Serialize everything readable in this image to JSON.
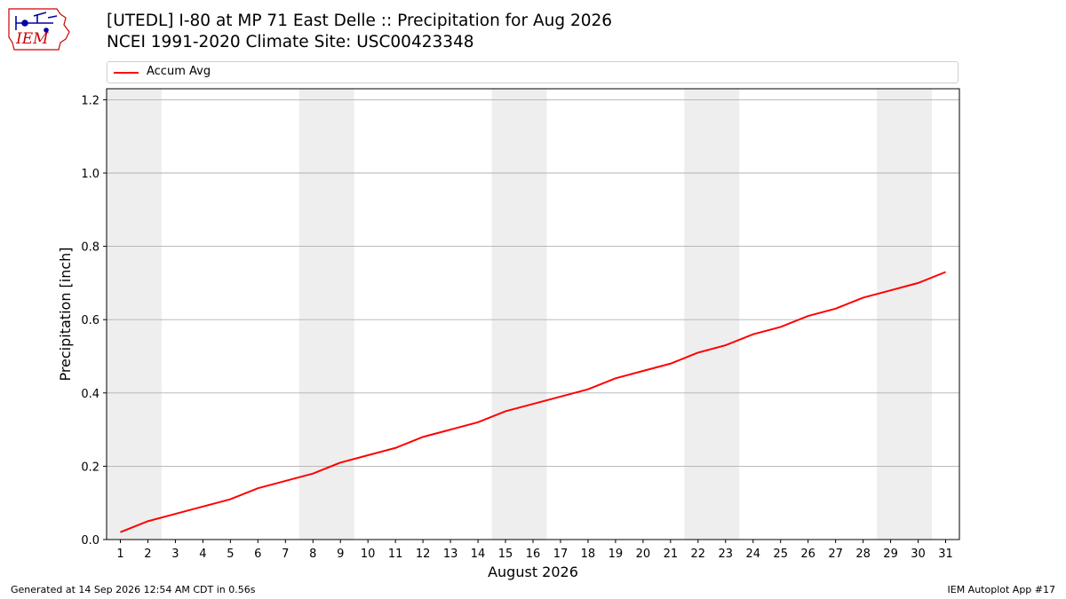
{
  "header": {
    "title_line1": "[UTEDL] I-80 at MP 71 East Delle  :: Precipitation for Aug 2026",
    "title_line2": "NCEI 1991-2020 Climate Site: USC00423348",
    "logo_text": "IEM",
    "logo_icon": "iem-iowa-logo-icon"
  },
  "footer": {
    "generated": "Generated at 14 Sep 2026 12:54 AM CDT in 0.56s",
    "app": "IEM Autoplot App #17"
  },
  "colors": {
    "line": "#ff0000",
    "weekend_band": "#eeeeee",
    "grid": "#b0b0b0",
    "logo": "#cc0000",
    "logo_icon": "#0000aa"
  },
  "chart_data": {
    "type": "line",
    "title": "[UTEDL] I-80 at MP 71 East Delle  :: Precipitation for Aug 2026",
    "subtitle": "NCEI 1991-2020 Climate Site: USC00423348",
    "xlabel": "August 2026",
    "ylabel": "Precipitation [inch]",
    "x": [
      1,
      2,
      3,
      4,
      5,
      6,
      7,
      8,
      9,
      10,
      11,
      12,
      13,
      14,
      15,
      16,
      17,
      18,
      19,
      20,
      21,
      22,
      23,
      24,
      25,
      26,
      27,
      28,
      29,
      30,
      31
    ],
    "x_ticks": [
      "1",
      "2",
      "3",
      "4",
      "5",
      "6",
      "7",
      "8",
      "9",
      "10",
      "11",
      "12",
      "13",
      "14",
      "15",
      "16",
      "17",
      "18",
      "19",
      "20",
      "21",
      "22",
      "23",
      "24",
      "25",
      "26",
      "27",
      "28",
      "29",
      "30",
      "31"
    ],
    "xlim": [
      0.5,
      31.5
    ],
    "ylim": [
      0,
      1.23
    ],
    "y_ticks": [
      "0.0",
      "0.2",
      "0.4",
      "0.6",
      "0.8",
      "1.0",
      "1.2"
    ],
    "y_tick_values": [
      0,
      0.2,
      0.4,
      0.6,
      0.8,
      1.0,
      1.2
    ],
    "grid": "horizontal",
    "legend_position": "top",
    "shaded_day_ranges": [
      [
        1,
        2
      ],
      [
        8,
        9
      ],
      [
        15,
        16
      ],
      [
        22,
        23
      ],
      [
        29,
        30
      ]
    ],
    "series": [
      {
        "name": "Accum Avg",
        "values": [
          0.02,
          0.05,
          0.07,
          0.09,
          0.11,
          0.14,
          0.16,
          0.18,
          0.21,
          0.23,
          0.25,
          0.28,
          0.3,
          0.32,
          0.35,
          0.37,
          0.39,
          0.41,
          0.44,
          0.46,
          0.48,
          0.51,
          0.53,
          0.56,
          0.58,
          0.61,
          0.63,
          0.66,
          0.68,
          0.7,
          0.73
        ]
      }
    ]
  }
}
